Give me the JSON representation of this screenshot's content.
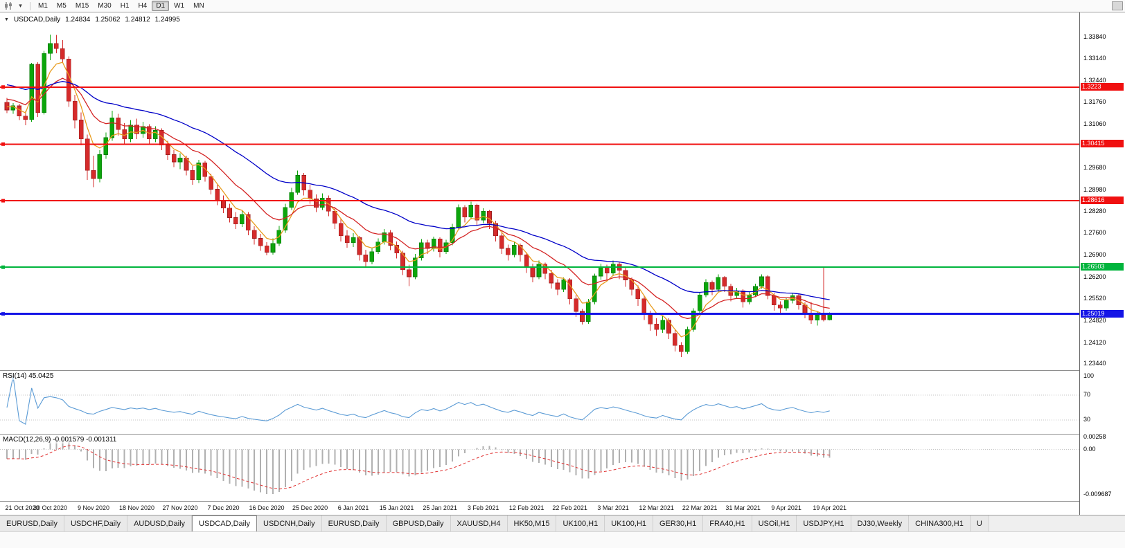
{
  "toolbar": {
    "timeframes": [
      "M1",
      "M5",
      "M15",
      "M30",
      "H1",
      "H4",
      "D1",
      "W1",
      "MN"
    ],
    "active_timeframe": "D1",
    "icons": [
      "chart-type-icon",
      "chart-type-dropdown-icon",
      "window-scroll-box"
    ]
  },
  "chart_header": {
    "symbol": "USDCAD,Daily",
    "open": "1.24834",
    "high": "1.25062",
    "low": "1.24812",
    "close": "1.24995"
  },
  "price_axis": {
    "labels": [
      "1.33840",
      "1.33140",
      "1.32440",
      "1.31760",
      "1.31060",
      "1.29680",
      "1.28980",
      "1.28280",
      "1.27600",
      "1.26900",
      "1.26200",
      "1.25520",
      "1.24820",
      "1.24120",
      "1.23440"
    ]
  },
  "rsi_pane": {
    "label": "RSI(14) 45.0425",
    "period": 14,
    "current_value": 45.0425,
    "axis_labels": [
      "100",
      "70",
      "30"
    ],
    "levels": [
      70,
      30
    ],
    "line_color": "#5b9bd5"
  },
  "macd_pane": {
    "label": "MACD(12,26,9) -0.001579 -0.001311",
    "params": [
      12,
      26,
      9
    ],
    "current_values": [
      -0.001579,
      -0.001311
    ],
    "axis_labels": [
      "0.00258",
      "0.00",
      "-0.009687"
    ],
    "histogram_color": "#b0b0b0",
    "signal_color": "#e03030"
  },
  "tabs": {
    "active_index": 3,
    "items": [
      "EURUSD,Daily",
      "USDCHF,Daily",
      "AUDUSD,Daily",
      "USDCAD,Daily",
      "USDCNH,Daily",
      "EURUSD,Daily",
      "GBPUSD,Daily",
      "XAUUSD,H4",
      "HK50,M15",
      "UK100,H1",
      "UK100,H1",
      "GER30,H1",
      "FRA40,H1",
      "USOil,H1",
      "USDJPY,H1",
      "DJ30,Weekly",
      "CHINA300,H1",
      "U"
    ]
  },
  "chart_data": {
    "type": "candlestick",
    "title": "USDCAD,Daily",
    "y_range": [
      1.2323,
      1.346
    ],
    "label_every": 7,
    "up_color": "#0ca50c",
    "down_color": "#d52b2b",
    "dates": [
      "21 Oct 2020",
      "30 Oct 2020",
      "9 Nov 2020",
      "18 Nov 2020",
      "27 Nov 2020",
      "7 Dec 2020",
      "16 Dec 2020",
      "25 Dec 2020",
      "6 Jan 2021",
      "15 Jan 2021",
      "25 Jan 2021",
      "3 Feb 2021",
      "12 Feb 2021",
      "22 Feb 2021",
      "3 Mar 2021",
      "12 Mar 2021",
      "22 Mar 2021",
      "31 Mar 2021",
      "9 Apr 2021",
      "19 Apr 2021"
    ],
    "hlines": [
      {
        "value": 1.3223,
        "label": "1.3223",
        "color": "#f01010",
        "width": 2
      },
      {
        "value": 1.30415,
        "label": "1.30415",
        "color": "#f01010",
        "width": 2
      },
      {
        "value": 1.28616,
        "label": "1.28616",
        "color": "#f01010",
        "width": 2
      },
      {
        "value": 1.26503,
        "label": "1.26503",
        "color": "#00b43c",
        "width": 2
      },
      {
        "value": 1.25019,
        "label": "1.25019",
        "color": "#1414e6",
        "width": 3
      }
    ],
    "moving_averages": [
      {
        "period": 5,
        "color": "#e89c1e",
        "seed": 1.3165
      },
      {
        "period": 13,
        "color": "#d42424",
        "seed": 1.319
      },
      {
        "period": 34,
        "color": "#0000c8",
        "seed": 1.3235
      }
    ],
    "ohlc": [
      [
        1.3175,
        1.3188,
        1.314,
        1.315
      ],
      [
        1.315,
        1.3172,
        1.3138,
        1.3163
      ],
      [
        1.3163,
        1.317,
        1.3118,
        1.3131
      ],
      [
        1.3131,
        1.3148,
        1.3102,
        1.312
      ],
      [
        1.312,
        1.33,
        1.3112,
        1.3295
      ],
      [
        1.3295,
        1.3302,
        1.3128,
        1.3142
      ],
      [
        1.3142,
        1.3338,
        1.3136,
        1.333
      ],
      [
        1.333,
        1.339,
        1.3308,
        1.3362
      ],
      [
        1.3362,
        1.3388,
        1.333,
        1.3345
      ],
      [
        1.3345,
        1.3372,
        1.3302,
        1.3312
      ],
      [
        1.3312,
        1.332,
        1.316,
        1.3178
      ],
      [
        1.3178,
        1.3198,
        1.3092,
        1.3118
      ],
      [
        1.3118,
        1.3142,
        1.3038,
        1.3058
      ],
      [
        1.3058,
        1.3072,
        1.2928,
        1.2958
      ],
      [
        1.2958,
        1.3005,
        1.2905,
        1.2932
      ],
      [
        1.2932,
        1.3022,
        1.292,
        1.3008
      ],
      [
        1.3008,
        1.3078,
        1.2995,
        1.3062
      ],
      [
        1.3062,
        1.3148,
        1.3052,
        1.3125
      ],
      [
        1.3125,
        1.3138,
        1.3068,
        1.3088
      ],
      [
        1.3088,
        1.3108,
        1.3042,
        1.3058
      ],
      [
        1.3058,
        1.3118,
        1.3048,
        1.3102
      ],
      [
        1.3102,
        1.3122,
        1.3058,
        1.3075
      ],
      [
        1.3075,
        1.3112,
        1.3062,
        1.3098
      ],
      [
        1.3098,
        1.3105,
        1.3042,
        1.3058
      ],
      [
        1.3058,
        1.3098,
        1.3048,
        1.3085
      ],
      [
        1.3085,
        1.3092,
        1.3022,
        1.3038
      ],
      [
        1.3038,
        1.3052,
        1.2992,
        1.3008
      ],
      [
        1.3008,
        1.3022,
        1.2968,
        1.2985
      ],
      [
        1.2985,
        1.3012,
        1.2962,
        1.2998
      ],
      [
        1.2998,
        1.3005,
        1.2942,
        1.2958
      ],
      [
        1.2958,
        1.2972,
        1.2912,
        1.2928
      ],
      [
        1.2928,
        1.2992,
        1.2918,
        1.2982
      ],
      [
        1.2982,
        1.2988,
        1.2922,
        1.2938
      ],
      [
        1.2938,
        1.2948,
        1.2882,
        1.2898
      ],
      [
        1.2898,
        1.2912,
        1.2848,
        1.2862
      ],
      [
        1.2862,
        1.2878,
        1.2822,
        1.2838
      ],
      [
        1.2838,
        1.2852,
        1.2792,
        1.2808
      ],
      [
        1.2808,
        1.2825,
        1.2772,
        1.2788
      ],
      [
        1.2788,
        1.2832,
        1.2778,
        1.2818
      ],
      [
        1.2818,
        1.2826,
        1.2752,
        1.2768
      ],
      [
        1.2768,
        1.278,
        1.2722,
        1.2742
      ],
      [
        1.2742,
        1.2756,
        1.2702,
        1.2718
      ],
      [
        1.2718,
        1.273,
        1.2688,
        1.2698
      ],
      [
        1.2698,
        1.2742,
        1.269,
        1.2726
      ],
      [
        1.2726,
        1.2782,
        1.2718,
        1.2768
      ],
      [
        1.2768,
        1.2852,
        1.276,
        1.284
      ],
      [
        1.284,
        1.2902,
        1.2832,
        1.2888
      ],
      [
        1.2888,
        1.2958,
        1.288,
        1.2942
      ],
      [
        1.2942,
        1.295,
        1.2878,
        1.2895
      ],
      [
        1.2895,
        1.2912,
        1.2852,
        1.2868
      ],
      [
        1.2868,
        1.2882,
        1.2825,
        1.284
      ],
      [
        1.284,
        1.2885,
        1.2832,
        1.287
      ],
      [
        1.287,
        1.2878,
        1.2812,
        1.2828
      ],
      [
        1.2828,
        1.2842,
        1.2772,
        1.279
      ],
      [
        1.279,
        1.2802,
        1.2732,
        1.275
      ],
      [
        1.275,
        1.2768,
        1.2712,
        1.2728
      ],
      [
        1.2728,
        1.2758,
        1.2715,
        1.2745
      ],
      [
        1.2745,
        1.275,
        1.2672,
        1.269
      ],
      [
        1.269,
        1.2706,
        1.2652,
        1.2668
      ],
      [
        1.2668,
        1.2712,
        1.266,
        1.27
      ],
      [
        1.27,
        1.2742,
        1.2692,
        1.273
      ],
      [
        1.273,
        1.2772,
        1.2722,
        1.276
      ],
      [
        1.276,
        1.2768,
        1.2705,
        1.272
      ],
      [
        1.272,
        1.2732,
        1.2678,
        1.2695
      ],
      [
        1.2695,
        1.2702,
        1.2625,
        1.2642
      ],
      [
        1.2642,
        1.2658,
        1.259,
        1.262
      ],
      [
        1.262,
        1.2692,
        1.2612,
        1.268
      ],
      [
        1.268,
        1.274,
        1.2672,
        1.2728
      ],
      [
        1.2728,
        1.2738,
        1.2692,
        1.271
      ],
      [
        1.271,
        1.2748,
        1.27,
        1.274
      ],
      [
        1.274,
        1.2745,
        1.2682,
        1.27
      ],
      [
        1.27,
        1.2738,
        1.2692,
        1.2728
      ],
      [
        1.2728,
        1.2788,
        1.272,
        1.2778
      ],
      [
        1.2778,
        1.285,
        1.277,
        1.284
      ],
      [
        1.284,
        1.2848,
        1.2792,
        1.281
      ],
      [
        1.281,
        1.2858,
        1.2802,
        1.2848
      ],
      [
        1.2848,
        1.2852,
        1.2782,
        1.28
      ],
      [
        1.28,
        1.2838,
        1.279,
        1.2828
      ],
      [
        1.2828,
        1.2832,
        1.2772,
        1.279
      ],
      [
        1.279,
        1.2798,
        1.2732,
        1.275
      ],
      [
        1.275,
        1.2762,
        1.2692,
        1.271
      ],
      [
        1.271,
        1.2722,
        1.2672,
        1.269
      ],
      [
        1.269,
        1.2732,
        1.2682,
        1.272
      ],
      [
        1.272,
        1.2726,
        1.2668,
        1.269
      ],
      [
        1.269,
        1.2698,
        1.2632,
        1.265
      ],
      [
        1.265,
        1.2662,
        1.2602,
        1.262
      ],
      [
        1.262,
        1.2672,
        1.2612,
        1.266
      ],
      [
        1.266,
        1.2665,
        1.2612,
        1.263
      ],
      [
        1.263,
        1.2642,
        1.2582,
        1.26
      ],
      [
        1.26,
        1.2612,
        1.2562,
        1.258
      ],
      [
        1.258,
        1.2618,
        1.2572,
        1.261
      ],
      [
        1.261,
        1.2615,
        1.2532,
        1.255
      ],
      [
        1.255,
        1.2562,
        1.2492,
        1.251
      ],
      [
        1.251,
        1.2518,
        1.2468,
        1.2478
      ],
      [
        1.2478,
        1.255,
        1.247,
        1.254
      ],
      [
        1.254,
        1.263,
        1.2532,
        1.2622
      ],
      [
        1.2622,
        1.2662,
        1.261,
        1.265
      ],
      [
        1.265,
        1.2658,
        1.2608,
        1.2632
      ],
      [
        1.2632,
        1.2672,
        1.2622,
        1.266
      ],
      [
        1.266,
        1.2668,
        1.2612,
        1.264
      ],
      [
        1.264,
        1.265,
        1.2588,
        1.261
      ],
      [
        1.261,
        1.2618,
        1.256,
        1.258
      ],
      [
        1.258,
        1.2592,
        1.2528,
        1.255
      ],
      [
        1.255,
        1.2558,
        1.2482,
        1.2502
      ],
      [
        1.2502,
        1.2512,
        1.2448,
        1.247
      ],
      [
        1.247,
        1.2488,
        1.2432,
        1.2452
      ],
      [
        1.2452,
        1.2495,
        1.2442,
        1.2482
      ],
      [
        1.2482,
        1.2488,
        1.2422,
        1.244
      ],
      [
        1.244,
        1.2452,
        1.2382,
        1.2402
      ],
      [
        1.2402,
        1.2412,
        1.2365,
        1.2382
      ],
      [
        1.2382,
        1.2462,
        1.2375,
        1.2452
      ],
      [
        1.2452,
        1.252,
        1.2445,
        1.2512
      ],
      [
        1.2512,
        1.257,
        1.2505,
        1.2562
      ],
      [
        1.2562,
        1.2612,
        1.2555,
        1.2602
      ],
      [
        1.2602,
        1.2608,
        1.2562,
        1.258
      ],
      [
        1.258,
        1.2628,
        1.2572,
        1.2618
      ],
      [
        1.2618,
        1.2622,
        1.2572,
        1.259
      ],
      [
        1.259,
        1.2598,
        1.2542,
        1.256
      ],
      [
        1.256,
        1.2585,
        1.255,
        1.2575
      ],
      [
        1.2575,
        1.258,
        1.2522,
        1.254
      ],
      [
        1.254,
        1.2572,
        1.2532,
        1.2562
      ],
      [
        1.2562,
        1.2598,
        1.2555,
        1.259
      ],
      [
        1.259,
        1.2628,
        1.2582,
        1.262
      ],
      [
        1.262,
        1.2625,
        1.2548,
        1.256
      ],
      [
        1.256,
        1.2568,
        1.2512,
        1.253
      ],
      [
        1.253,
        1.2542,
        1.2502,
        1.252
      ],
      [
        1.252,
        1.2552,
        1.2512,
        1.2545
      ],
      [
        1.2545,
        1.2568,
        1.2535,
        1.256
      ],
      [
        1.256,
        1.2565,
        1.2515,
        1.253
      ],
      [
        1.253,
        1.2538,
        1.2488,
        1.2505
      ],
      [
        1.2505,
        1.254,
        1.247,
        1.2482
      ],
      [
        1.2482,
        1.251,
        1.2465,
        1.2498
      ],
      [
        1.2498,
        1.265,
        1.2478,
        1.2483
      ],
      [
        1.24834,
        1.25062,
        1.24812,
        1.24995
      ]
    ]
  }
}
